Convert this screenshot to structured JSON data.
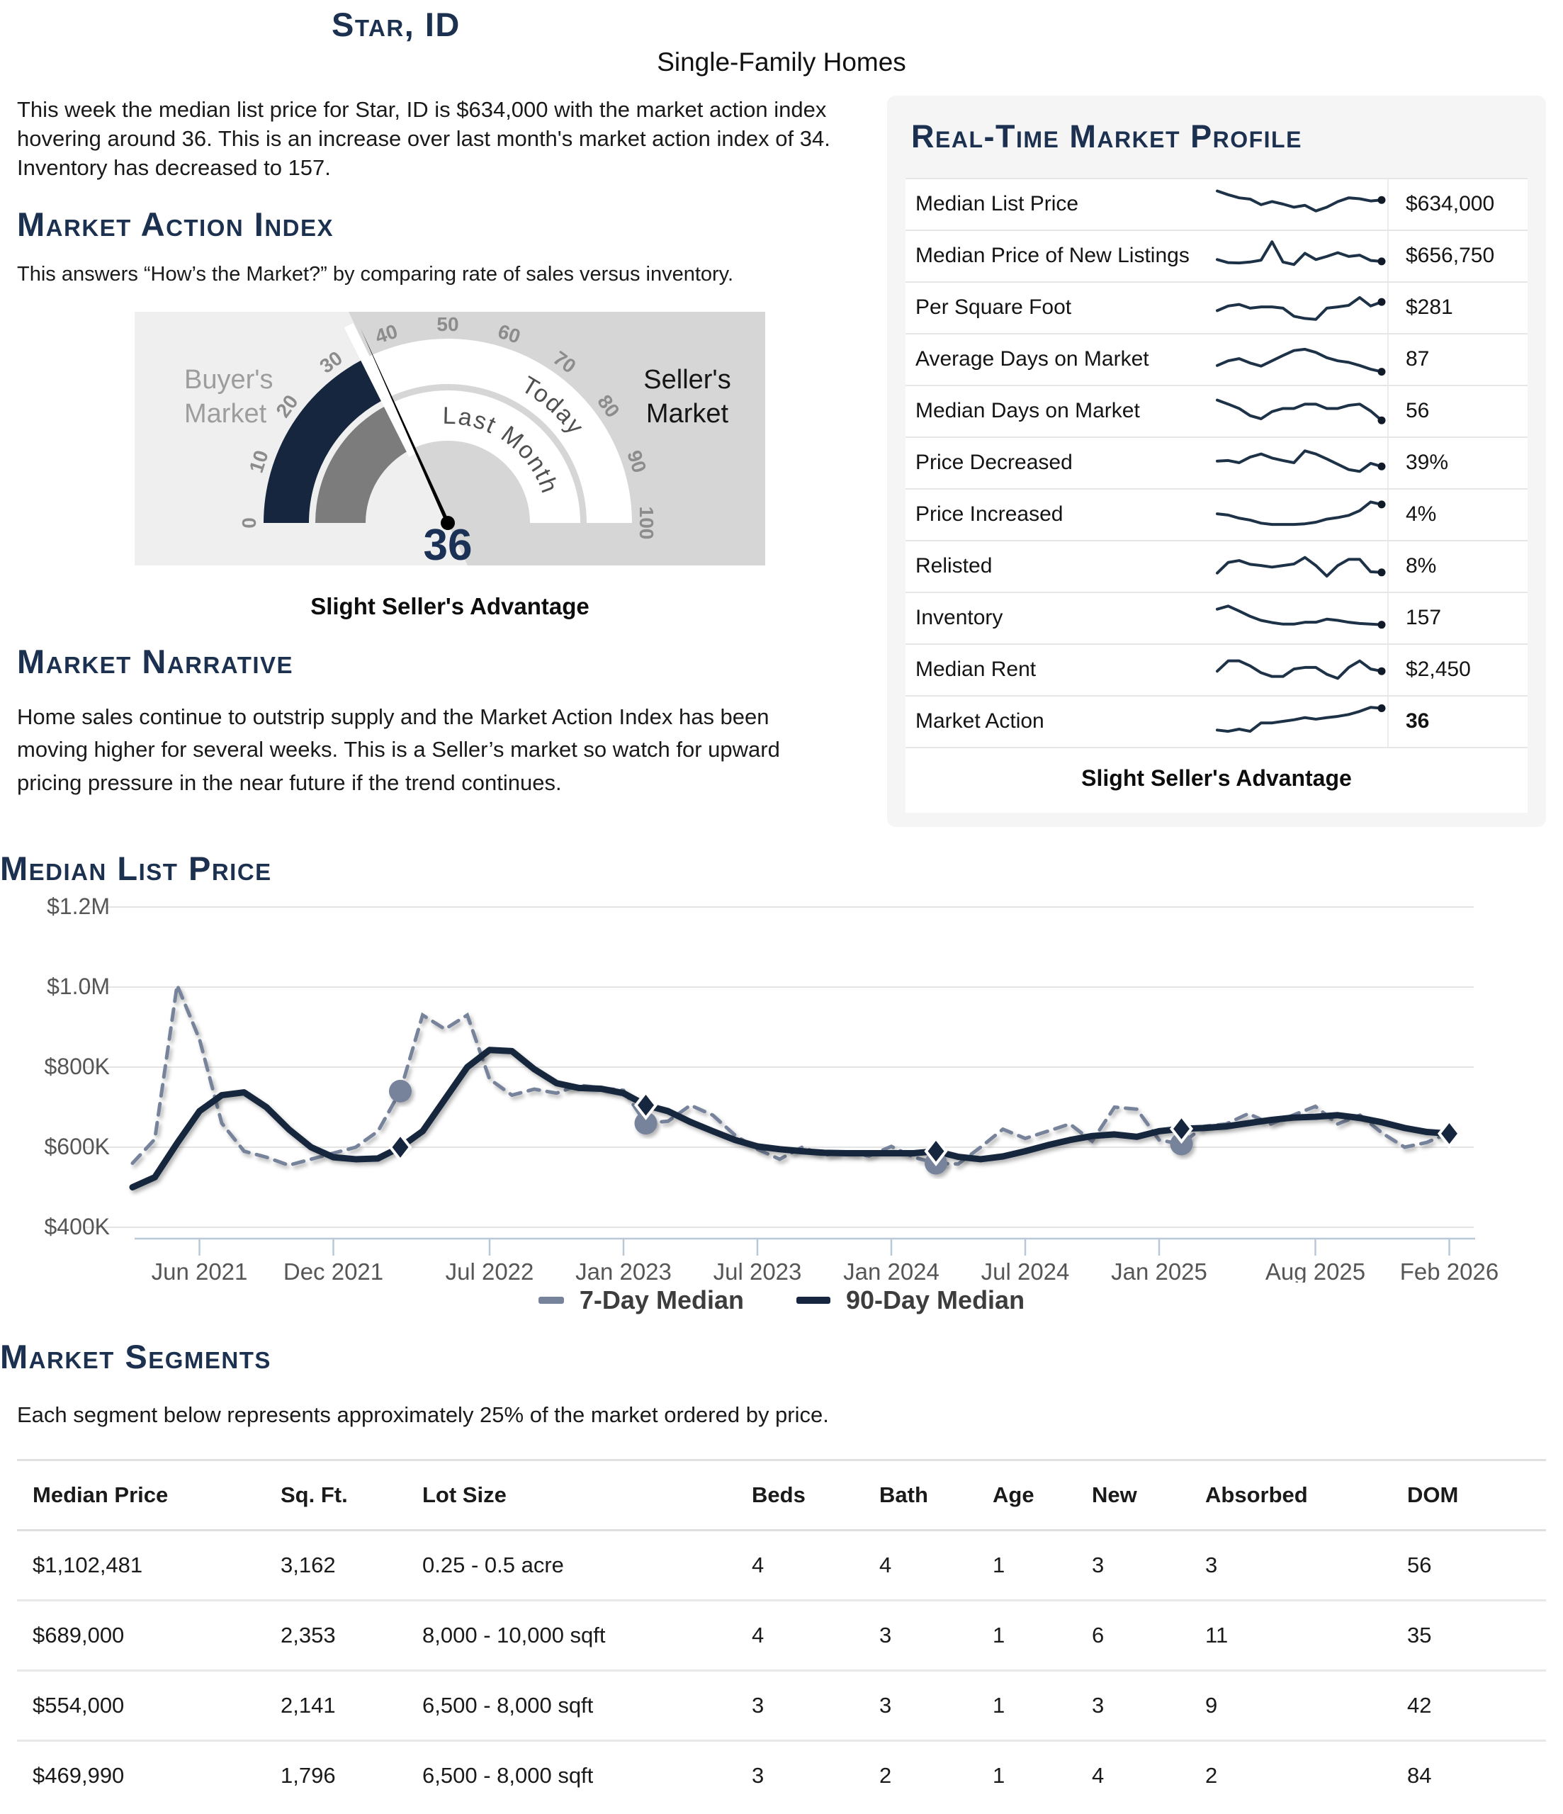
{
  "page": {
    "title": "Star, ID",
    "subtitle": "Single-Family Homes"
  },
  "intro": "This week the median list price for Star, ID is $634,000 with the market action index hovering around 36. This is an increase over last month's market action index of 34. Inventory has decreased to 157.",
  "mai": {
    "heading": "Market Action Index",
    "description": "This answers “How’s the Market?” by comparing rate of sales versus inventory.",
    "gauge": {
      "value": 36,
      "value_label": "36",
      "last_month_value": 34,
      "min": 0,
      "max": 100,
      "ticks": [
        "0",
        "10",
        "20",
        "30",
        "40",
        "50",
        "60",
        "70",
        "80",
        "90",
        "100"
      ],
      "buyer_label": [
        "Buyer's",
        "Market"
      ],
      "seller_label": [
        "Seller's",
        "Market"
      ],
      "inner_band_label": "Last Month",
      "outer_band_label": "Today",
      "caption": "Slight Seller's Advantage",
      "colors": {
        "value_band": "#16263e",
        "last_month_band": "#7c7c7c",
        "bg_left": "#efefef",
        "bg_right": "#d6d6d6",
        "tick_text": "#8c8c8c",
        "band_text": "#4f4f4f",
        "value_text": "#1b3055"
      }
    }
  },
  "profile": {
    "heading": "Real-Time Market Profile",
    "footer": "Slight Seller's Advantage",
    "rows": [
      {
        "label": "Median List Price",
        "value": "$634,000",
        "bold": false,
        "spark": [
          92,
          80,
          70,
          66,
          48,
          58,
          50,
          40,
          46,
          28,
          40,
          58,
          70,
          67,
          60,
          63
        ]
      },
      {
        "label": "Median Price of New Listings",
        "value": "$656,750",
        "bold": false,
        "spark": [
          38,
          28,
          27,
          30,
          36,
          95,
          30,
          22,
          58,
          38,
          48,
          60,
          48,
          52,
          35,
          32
        ]
      },
      {
        "label": "Per Square Foot",
        "value": "$281",
        "bold": false,
        "spark": [
          40,
          55,
          60,
          48,
          52,
          52,
          48,
          22,
          15,
          12,
          48,
          52,
          57,
          82,
          55,
          68
        ]
      },
      {
        "label": "Average Days on Market",
        "value": "87",
        "bold": false,
        "spark": [
          30,
          45,
          52,
          38,
          28,
          45,
          62,
          78,
          82,
          72,
          55,
          45,
          40,
          30,
          18,
          10
        ]
      },
      {
        "label": "Median Days on Market",
        "value": "56",
        "bold": false,
        "spark": [
          85,
          72,
          58,
          35,
          25,
          48,
          58,
          58,
          72,
          72,
          58,
          58,
          68,
          72,
          50,
          20
        ]
      },
      {
        "label": "Price Decreased",
        "value": "39%",
        "bold": false,
        "spark": [
          55,
          57,
          50,
          68,
          78,
          65,
          57,
          50,
          88,
          78,
          62,
          45,
          28,
          22,
          48,
          38
        ]
      },
      {
        "label": "Price Increased",
        "value": "4%",
        "bold": false,
        "spark": [
          52,
          48,
          38,
          32,
          22,
          18,
          18,
          18,
          20,
          25,
          35,
          40,
          47,
          62,
          90,
          82
        ]
      },
      {
        "label": "Relisted",
        "value": "8%",
        "bold": false,
        "spark": [
          28,
          62,
          68,
          56,
          52,
          47,
          52,
          57,
          78,
          52,
          18,
          52,
          72,
          72,
          32,
          30
        ]
      },
      {
        "label": "Inventory",
        "value": "157",
        "bold": false,
        "spark": [
          78,
          88,
          72,
          55,
          42,
          35,
          30,
          30,
          36,
          36,
          46,
          42,
          36,
          32,
          30,
          28
        ]
      },
      {
        "label": "Median Rent",
        "value": "$2,450",
        "bold": false,
        "spark": [
          45,
          78,
          78,
          62,
          40,
          28,
          28,
          52,
          57,
          57,
          35,
          22,
          57,
          78,
          52,
          45
        ]
      },
      {
        "label": "Market Action",
        "value": "36",
        "bold": true,
        "spark": [
          22,
          18,
          25,
          18,
          45,
          45,
          50,
          55,
          62,
          57,
          62,
          66,
          72,
          82,
          95,
          92
        ]
      }
    ]
  },
  "narrative": {
    "heading": "Market Narrative",
    "text": "Home sales continue to outstrip supply and the Market Action Index has been moving higher for several weeks. This is a Seller’s market so watch for upward pricing pressure in the near future if the trend continues."
  },
  "chart_section": {
    "heading": "Median List Price"
  },
  "chart_data": {
    "type": "line",
    "title": "Median List Price",
    "x_monthly_start": "2021-03",
    "unit": "USD thousands",
    "ylim": [
      400,
      1200
    ],
    "y_ticks": [
      "$400K",
      "$600K",
      "$800K",
      "$1.0M",
      "$1.2M"
    ],
    "y_tick_values": [
      400,
      600,
      800,
      1000,
      1200
    ],
    "x_ticks": [
      {
        "label": "Jun 2021",
        "month_index": 3
      },
      {
        "label": "Dec 2021",
        "month_index": 9
      },
      {
        "label": "Jul 2022",
        "month_index": 16
      },
      {
        "label": "Jan 2023",
        "month_index": 22
      },
      {
        "label": "Jul 2023",
        "month_index": 28
      },
      {
        "label": "Jan 2024",
        "month_index": 34
      },
      {
        "label": "Jul 2024",
        "month_index": 40
      },
      {
        "label": "Jan 2025",
        "month_index": 46
      },
      {
        "label": "Aug 2025",
        "month_index": 53
      },
      {
        "label": "Feb 2026",
        "month_index": 59
      }
    ],
    "series": [
      {
        "name": "7-Day Median",
        "color": "#76839a",
        "style": "dashed",
        "values": [
          560,
          620,
          1005,
          870,
          660,
          590,
          575,
          555,
          570,
          585,
          600,
          640,
          740,
          930,
          895,
          930,
          770,
          730,
          745,
          735,
          755,
          748,
          742,
          660,
          665,
          705,
          680,
          630,
          595,
          570,
          600,
          580,
          588,
          578,
          602,
          575,
          560,
          558,
          600,
          645,
          622,
          640,
          658,
          615,
          700,
          695,
          618,
          608,
          652,
          658,
          684,
          658,
          680,
          702,
          658,
          680,
          635,
          600,
          612,
          636
        ]
      },
      {
        "name": "90-Day Median",
        "color": "#16263e",
        "style": "solid",
        "values": [
          500,
          525,
          610,
          690,
          730,
          737,
          700,
          645,
          600,
          575,
          570,
          572,
          600,
          640,
          720,
          800,
          843,
          840,
          795,
          760,
          748,
          746,
          735,
          705,
          690,
          663,
          640,
          618,
          602,
          595,
          590,
          586,
          585,
          585,
          585,
          585,
          590,
          576,
          570,
          577,
          590,
          605,
          618,
          628,
          632,
          626,
          640,
          646,
          648,
          652,
          660,
          668,
          674,
          676,
          680,
          673,
          662,
          648,
          638,
          634
        ]
      }
    ],
    "marker_month_indices": [
      12,
      23,
      36,
      47,
      59
    ],
    "circle_marker_month_indices": [
      12,
      23,
      36,
      47
    ],
    "legend": [
      {
        "label": "7-Day Median",
        "color": "#76839a",
        "dashed": true
      },
      {
        "label": "90-Day Median",
        "color": "#16263e",
        "dashed": false
      }
    ],
    "grid": true,
    "legend_position": "bottom"
  },
  "segments": {
    "heading": "Market Segments",
    "subtitle": "Each segment below represents approximately 25% of the market ordered by price.",
    "columns": [
      "Median Price",
      "Sq. Ft.",
      "Lot Size",
      "Beds",
      "Bath",
      "Age",
      "New",
      "Absorbed",
      "DOM"
    ],
    "rows": [
      [
        "$1,102,481",
        "3,162",
        "0.25 - 0.5 acre",
        "4",
        "4",
        "1",
        "3",
        "3",
        "56"
      ],
      [
        "$689,000",
        "2,353",
        "8,000 - 10,000 sqft",
        "4",
        "3",
        "1",
        "6",
        "11",
        "35"
      ],
      [
        "$554,000",
        "2,141",
        "6,500 - 8,000 sqft",
        "3",
        "3",
        "1",
        "3",
        "9",
        "42"
      ],
      [
        "$469,990",
        "1,796",
        "6,500 - 8,000 sqft",
        "3",
        "2",
        "1",
        "4",
        "2",
        "84"
      ]
    ]
  }
}
